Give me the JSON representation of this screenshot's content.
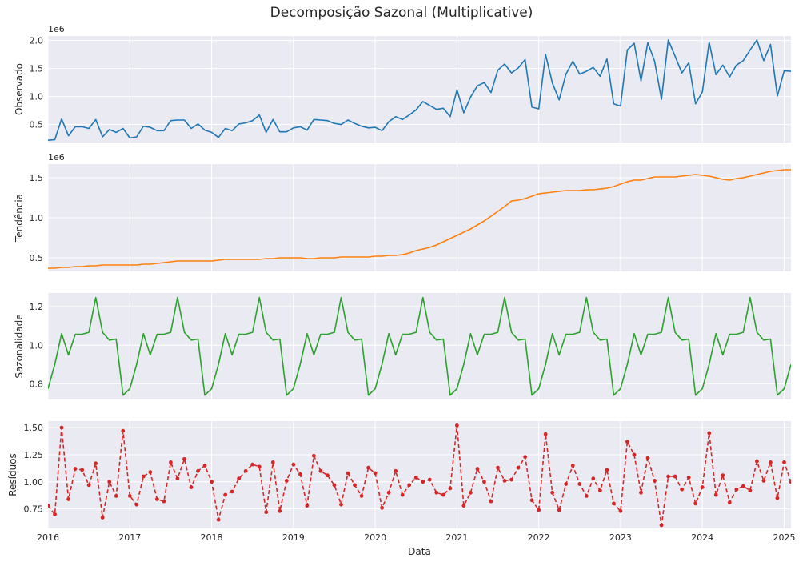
{
  "figure": {
    "title": "Decomposição Sazonal (Multiplicative)",
    "xlabel": "Data"
  },
  "colors": {
    "background": "#eaeaf2",
    "grid": "#ffffff",
    "observed": "#1f77b4",
    "trend": "#ff7f0e",
    "seasonal": "#2ca02c",
    "resid": "#d62728"
  },
  "x_axis": {
    "start": "2016-01",
    "end": "2025-02",
    "ticks": [
      "2016",
      "2017",
      "2018",
      "2019",
      "2020",
      "2021",
      "2022",
      "2023",
      "2024",
      "2025"
    ]
  },
  "chart_data": [
    {
      "type": "line",
      "ylabel": "Observado",
      "multiplier": "1e6",
      "ylim": [
        0.18,
        2.08
      ],
      "yticks": [
        "0.5",
        "1.0",
        "1.5",
        "2.0"
      ],
      "ytick_values": [
        0.5,
        1.0,
        1.5,
        2.0
      ],
      "grid": true,
      "series": [
        {
          "x_start": "2016-01",
          "values": [
            0.22,
            0.23,
            0.6,
            0.3,
            0.46,
            0.46,
            0.43,
            0.59,
            0.28,
            0.41,
            0.36,
            0.43,
            0.26,
            0.28,
            0.47,
            0.45,
            0.39,
            0.39,
            0.57,
            0.58,
            0.58,
            0.43,
            0.51,
            0.4,
            0.36,
            0.27,
            0.43,
            0.39,
            0.51,
            0.53,
            0.57,
            0.67,
            0.36,
            0.59,
            0.37,
            0.37,
            0.44,
            0.46,
            0.4,
            0.59,
            0.58,
            0.57,
            0.52,
            0.5,
            0.58,
            0.52,
            0.47,
            0.44,
            0.45,
            0.39,
            0.55,
            0.64,
            0.59,
            0.67,
            0.76,
            0.91,
            0.84,
            0.77,
            0.79,
            0.64,
            1.12,
            0.71,
            0.99,
            1.19,
            1.25,
            1.07,
            1.47,
            1.58,
            1.42,
            1.51,
            1.66,
            0.81,
            0.78,
            1.75,
            1.24,
            0.94,
            1.4,
            1.63,
            1.4,
            1.45,
            1.52,
            1.36,
            1.67,
            0.87,
            0.83,
            1.83,
            1.95,
            1.28,
            1.96,
            1.63,
            0.95,
            2.01,
            1.72,
            1.42,
            1.6,
            0.87,
            1.08,
            1.97,
            1.39,
            1.56,
            1.35,
            1.56,
            1.64,
            1.83,
            2.01,
            1.64,
            1.93,
            1.01,
            1.46,
            1.45
          ]
        }
      ]
    },
    {
      "type": "line",
      "ylabel": "Tendência",
      "multiplier": "1e6",
      "ylim": [
        0.33,
        1.67
      ],
      "yticks": [
        "0.5",
        "1.0",
        "1.5"
      ],
      "ytick_values": [
        0.5,
        1.0,
        1.5
      ],
      "grid": true,
      "series": [
        {
          "x_start": "2016-01",
          "values": [
            0.37,
            0.37,
            0.38,
            0.38,
            0.39,
            0.39,
            0.4,
            0.4,
            0.41,
            0.41,
            0.41,
            0.41,
            0.41,
            0.41,
            0.42,
            0.42,
            0.43,
            0.44,
            0.45,
            0.46,
            0.46,
            0.46,
            0.46,
            0.46,
            0.46,
            0.47,
            0.48,
            0.48,
            0.48,
            0.48,
            0.48,
            0.48,
            0.49,
            0.49,
            0.5,
            0.5,
            0.5,
            0.5,
            0.49,
            0.49,
            0.5,
            0.5,
            0.5,
            0.51,
            0.51,
            0.51,
            0.51,
            0.51,
            0.52,
            0.52,
            0.53,
            0.53,
            0.54,
            0.56,
            0.59,
            0.61,
            0.63,
            0.66,
            0.7,
            0.74,
            0.78,
            0.82,
            0.86,
            0.91,
            0.96,
            1.02,
            1.08,
            1.14,
            1.21,
            1.22,
            1.24,
            1.27,
            1.3,
            1.31,
            1.32,
            1.33,
            1.34,
            1.34,
            1.34,
            1.35,
            1.35,
            1.36,
            1.37,
            1.39,
            1.42,
            1.45,
            1.47,
            1.47,
            1.49,
            1.51,
            1.51,
            1.51,
            1.51,
            1.52,
            1.53,
            1.54,
            1.53,
            1.52,
            1.5,
            1.48,
            1.47,
            1.49,
            1.5,
            1.52,
            1.54,
            1.56,
            1.58,
            1.59,
            1.6,
            1.6
          ]
        }
      ]
    },
    {
      "type": "line",
      "ylabel": "Sazonalidade",
      "ylim": [
        0.72,
        1.27
      ],
      "yticks": [
        "0.8",
        "1.0",
        "1.2"
      ],
      "ytick_values": [
        0.8,
        1.0,
        1.2
      ],
      "grid": true,
      "series": [
        {
          "x_start": "2016-01",
          "values": [
            0.776,
            0.901,
            1.06,
            0.95,
            1.057,
            1.057,
            1.067,
            1.247,
            1.067,
            1.027,
            1.032,
            0.742,
            0.776,
            0.901,
            1.06,
            0.95,
            1.057,
            1.057,
            1.067,
            1.247,
            1.067,
            1.027,
            1.032,
            0.742,
            0.776,
            0.901,
            1.06,
            0.95,
            1.057,
            1.057,
            1.067,
            1.247,
            1.067,
            1.027,
            1.032,
            0.742,
            0.776,
            0.901,
            1.06,
            0.95,
            1.057,
            1.057,
            1.067,
            1.247,
            1.067,
            1.027,
            1.032,
            0.742,
            0.776,
            0.901,
            1.06,
            0.95,
            1.057,
            1.057,
            1.067,
            1.247,
            1.067,
            1.027,
            1.032,
            0.742,
            0.776,
            0.901,
            1.06,
            0.95,
            1.057,
            1.057,
            1.067,
            1.247,
            1.067,
            1.027,
            1.032,
            0.742,
            0.776,
            0.901,
            1.06,
            0.95,
            1.057,
            1.057,
            1.067,
            1.247,
            1.067,
            1.027,
            1.032,
            0.742,
            0.776,
            0.901,
            1.06,
            0.95,
            1.057,
            1.057,
            1.067,
            1.247,
            1.067,
            1.027,
            1.032,
            0.742,
            0.776,
            0.901,
            1.06,
            0.95,
            1.057,
            1.057,
            1.067,
            1.247,
            1.067,
            1.027,
            1.032,
            0.742,
            0.776,
            0.901
          ]
        }
      ]
    },
    {
      "type": "line",
      "ylabel": "Resíduos",
      "ylim": [
        0.57,
        1.56
      ],
      "yticks": [
        "0.75",
        "1.00",
        "1.25",
        "1.50"
      ],
      "ytick_values": [
        0.75,
        1.0,
        1.25,
        1.5
      ],
      "grid": true,
      "line_style": "dashed",
      "markers": true,
      "series": [
        {
          "x_start": "2016-01",
          "values": [
            0.78,
            0.7,
            1.5,
            0.84,
            1.12,
            1.11,
            0.97,
            1.17,
            0.67,
            1.0,
            0.87,
            1.47,
            0.87,
            0.79,
            1.05,
            1.09,
            0.84,
            0.82,
            1.18,
            1.03,
            1.21,
            0.95,
            1.1,
            1.15,
            1.0,
            0.65,
            0.88,
            0.91,
            1.03,
            1.1,
            1.16,
            1.14,
            0.72,
            1.18,
            0.73,
            1.01,
            1.16,
            1.07,
            0.78,
            1.24,
            1.1,
            1.06,
            0.97,
            0.79,
            1.08,
            0.97,
            0.87,
            1.13,
            1.08,
            0.76,
            0.9,
            1.1,
            0.88,
            0.97,
            1.04,
            1.0,
            1.02,
            0.9,
            0.88,
            0.94,
            1.52,
            0.78,
            0.9,
            1.12,
            1.0,
            0.82,
            1.13,
            1.01,
            1.02,
            1.13,
            1.23,
            0.83,
            0.74,
            1.44,
            0.9,
            0.74,
            0.98,
            1.15,
            0.98,
            0.87,
            1.03,
            0.92,
            1.11,
            0.8,
            0.73,
            1.37,
            1.25,
            0.9,
            1.22,
            1.01,
            0.6,
            1.05,
            1.05,
            0.93,
            1.04,
            0.8,
            0.95,
            1.45,
            0.88,
            1.06,
            0.81,
            0.93,
            0.96,
            0.92,
            1.19,
            1.01,
            1.18,
            0.85,
            1.18,
            1.0
          ]
        }
      ]
    }
  ]
}
